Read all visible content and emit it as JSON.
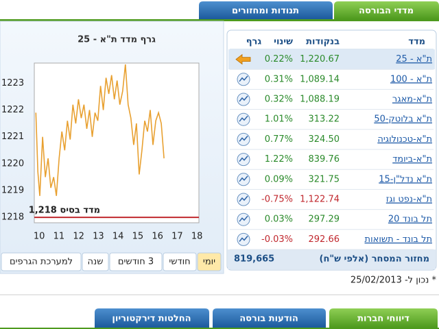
{
  "tabs_top": [
    "מדדי הבורסה",
    "תנודות ומחזורים"
  ],
  "table": {
    "headers": [
      "מדד",
      "בנקודות",
      "שינוי",
      "גרף"
    ],
    "rows": [
      [
        "ת\"א - 25",
        "1,220.67",
        "0.22%"
      ],
      [
        "ת\"א - 100",
        "1,089.14",
        "0.31%"
      ],
      [
        "ת\"א-מאגר",
        "1,088.19",
        "0.32%"
      ],
      [
        "ת\"א בלוטק-50",
        "313.22",
        "1.01%"
      ],
      [
        "ת\"א-טכנולוגיה",
        "324.50",
        "0.77%"
      ],
      [
        "ת\"א-ביומד",
        "839.76",
        "1.22%"
      ],
      [
        "ת\"א נדל\"ן-15",
        "321.75",
        "0.09%"
      ],
      [
        "ת\"א-נפט וגז",
        "1,122.74",
        "-0.75%"
      ],
      [
        "תל בונד 20",
        "297.29",
        "0.03%"
      ],
      [
        "תל בונד - תשואות",
        "292.66",
        "-0.03%"
      ]
    ],
    "footer_label": "מחזור המסחר (אלפי ש\"ח)",
    "footer_value": "819,665"
  },
  "chart": {
    "title": "גרף מדד ת\"א - 25",
    "baseline": 1218,
    "baseline_label": "מדד בסיס 1,218",
    "color": "#e8a030",
    "baseline_color": "#c0272d",
    "xlim": [
      9.75,
      18.1
    ],
    "ylim": [
      1217.8,
      1223.75
    ],
    "xticks": [
      10,
      11,
      12,
      13,
      14,
      15,
      16,
      17,
      18
    ],
    "yticks": [
      1218,
      1219,
      1220,
      1221,
      1222,
      1223
    ],
    "x": [
      9.83,
      9.93,
      10.03,
      10.17,
      10.31,
      10.45,
      10.59,
      10.73,
      10.87,
      11.01,
      11.15,
      11.29,
      11.43,
      11.57,
      11.71,
      11.85,
      11.99,
      12.13,
      12.27,
      12.41,
      12.55,
      12.69,
      12.83,
      12.97,
      13.11,
      13.25,
      13.39,
      13.53,
      13.67,
      13.81,
      13.95,
      14.09,
      14.23,
      14.37,
      14.51,
      14.65,
      14.79,
      14.93,
      15.07,
      15.21,
      15.35,
      15.49,
      15.63,
      15.77,
      15.91,
      16.05,
      16.19,
      16.33
    ],
    "values": [
      1221.9,
      1219.7,
      1218.8,
      1221.0,
      1219.5,
      1220.2,
      1219.1,
      1219.5,
      1218.8,
      1220.2,
      1221.2,
      1220.5,
      1221.6,
      1220.9,
      1222.2,
      1221.5,
      1222.4,
      1221.7,
      1222.2,
      1221.3,
      1222.0,
      1221.0,
      1221.9,
      1221.6,
      1222.9,
      1222.0,
      1223.2,
      1222.6,
      1223.3,
      1222.4,
      1223.1,
      1222.2,
      1222.7,
      1223.7,
      1222.2,
      1221.7,
      1220.7,
      1221.5,
      1219.6,
      1220.5,
      1221.6,
      1221.2,
      1222.0,
      1220.7,
      1221.6,
      1221.9,
      1221.5,
      1220.2
    ]
  },
  "range_buttons": [
    "יומי",
    "חודשי",
    "3 חודשים",
    "שנה",
    "למערכת הגרפים"
  ],
  "date_note": "* נכון ל- 25/02/2013",
  "tabs_bottom": [
    "דיווחי חברות",
    "הודעות בורסה",
    "החלטות דירקטוריון"
  ]
}
